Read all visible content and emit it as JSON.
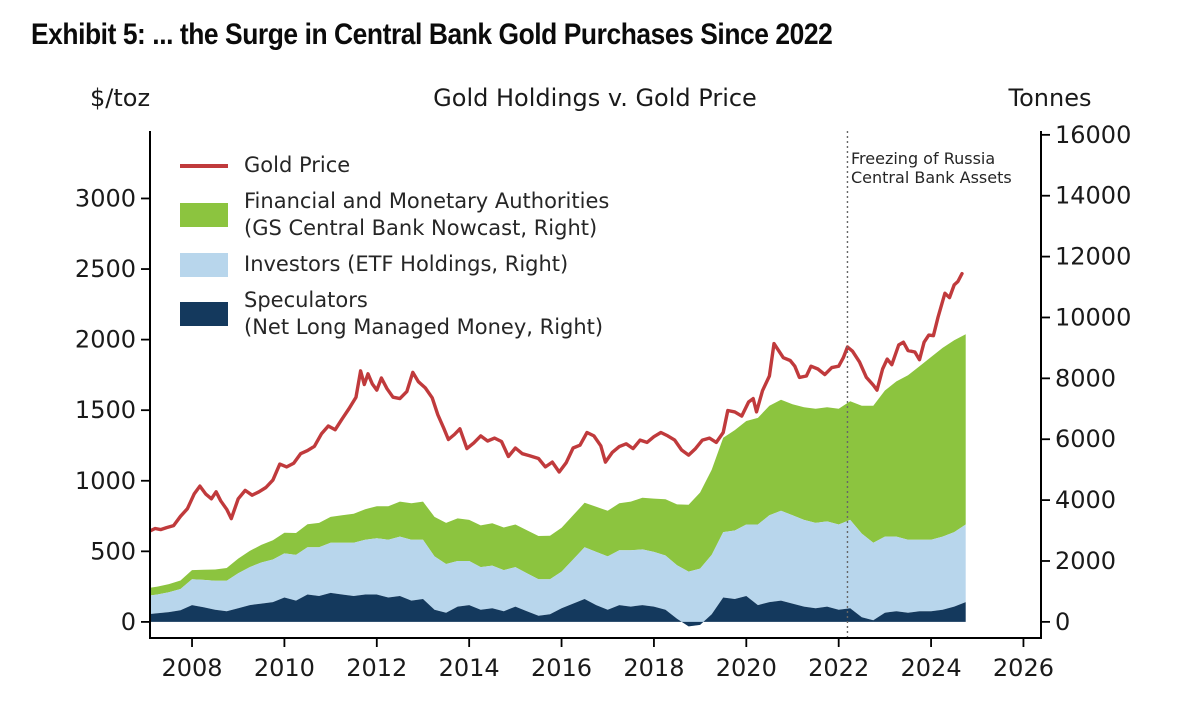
{
  "header": {
    "title": "Exhibit 5: ... the Surge in Central Bank Gold Purchases Since 2022"
  },
  "chart": {
    "title": "Gold Holdings v. Gold Price",
    "left_axis_title": "$/toz",
    "right_axis_title": "Tonnes",
    "annotation": "Freezing of Russia\nCentral Bank Assets",
    "legend": [
      {
        "type": "line",
        "color": "#c03a3c",
        "label": "Gold Price"
      },
      {
        "type": "patch",
        "color": "#8cc43f",
        "label": "Financial and Monetary Authorities\n(GS Central Bank Nowcast, Right)"
      },
      {
        "type": "patch",
        "color": "#b8d6ec",
        "label": "Investors (ETF Holdings, Right)"
      },
      {
        "type": "patch",
        "color": "#14395d",
        "label": "Speculators\n(Net Long Managed Money, Right)"
      }
    ]
  },
  "chart_data": {
    "type": "combo",
    "subtypes": [
      "line",
      "stacked_area"
    ],
    "title": "Gold Holdings v. Gold Price",
    "x_axis": {
      "ticks": [
        2008,
        2010,
        2012,
        2014,
        2016,
        2018,
        2020,
        2022,
        2024,
        2026
      ],
      "range": [
        2007.09,
        2026.38
      ],
      "grid": false
    },
    "left_y_axis": {
      "label": "$/toz",
      "ticks": [
        0,
        500,
        1000,
        1500,
        2000,
        2500,
        3000
      ],
      "range": [
        -114,
        3478
      ]
    },
    "right_y_axis": {
      "label": "Tonnes",
      "ticks": [
        0,
        2000,
        4000,
        6000,
        8000,
        10000,
        12000,
        14000,
        16000
      ],
      "range": [
        -530,
        16126
      ]
    },
    "event_line": {
      "x": 2022.19,
      "label": "Freezing of Russia Central Bank Assets",
      "style": "dashed"
    },
    "legend_position": "upper-left-inside",
    "gold_price": {
      "name": "Gold Price",
      "axis": "left",
      "unit": "$/toz",
      "color": "#c03a3c",
      "points": [
        [
          2007.09,
          645
        ],
        [
          2007.2,
          662
        ],
        [
          2007.32,
          654
        ],
        [
          2007.45,
          668
        ],
        [
          2007.6,
          682
        ],
        [
          2007.75,
          748
        ],
        [
          2007.9,
          802
        ],
        [
          2008.05,
          908
        ],
        [
          2008.17,
          962
        ],
        [
          2008.3,
          905
        ],
        [
          2008.42,
          872
        ],
        [
          2008.52,
          922
        ],
        [
          2008.62,
          858
        ],
        [
          2008.75,
          798
        ],
        [
          2008.85,
          732
        ],
        [
          2009.0,
          872
        ],
        [
          2009.15,
          932
        ],
        [
          2009.3,
          898
        ],
        [
          2009.45,
          922
        ],
        [
          2009.6,
          952
        ],
        [
          2009.75,
          1005
        ],
        [
          2009.9,
          1118
        ],
        [
          2010.05,
          1098
        ],
        [
          2010.2,
          1124
        ],
        [
          2010.35,
          1192
        ],
        [
          2010.5,
          1214
        ],
        [
          2010.65,
          1244
        ],
        [
          2010.8,
          1332
        ],
        [
          2010.95,
          1388
        ],
        [
          2011.1,
          1362
        ],
        [
          2011.25,
          1438
        ],
        [
          2011.4,
          1512
        ],
        [
          2011.55,
          1592
        ],
        [
          2011.65,
          1778
        ],
        [
          2011.73,
          1682
        ],
        [
          2011.81,
          1758
        ],
        [
          2011.9,
          1688
        ],
        [
          2012.0,
          1642
        ],
        [
          2012.1,
          1728
        ],
        [
          2012.22,
          1652
        ],
        [
          2012.35,
          1592
        ],
        [
          2012.5,
          1582
        ],
        [
          2012.65,
          1632
        ],
        [
          2012.78,
          1768
        ],
        [
          2012.9,
          1702
        ],
        [
          2013.05,
          1658
        ],
        [
          2013.2,
          1588
        ],
        [
          2013.32,
          1468
        ],
        [
          2013.45,
          1372
        ],
        [
          2013.55,
          1292
        ],
        [
          2013.68,
          1328
        ],
        [
          2013.8,
          1368
        ],
        [
          2013.95,
          1228
        ],
        [
          2014.1,
          1268
        ],
        [
          2014.25,
          1318
        ],
        [
          2014.4,
          1282
        ],
        [
          2014.55,
          1302
        ],
        [
          2014.7,
          1278
        ],
        [
          2014.85,
          1172
        ],
        [
          2015.0,
          1232
        ],
        [
          2015.15,
          1192
        ],
        [
          2015.3,
          1178
        ],
        [
          2015.5,
          1158
        ],
        [
          2015.65,
          1098
        ],
        [
          2015.8,
          1132
        ],
        [
          2015.95,
          1062
        ],
        [
          2016.1,
          1128
        ],
        [
          2016.25,
          1232
        ],
        [
          2016.4,
          1252
        ],
        [
          2016.55,
          1342
        ],
        [
          2016.7,
          1318
        ],
        [
          2016.85,
          1248
        ],
        [
          2016.95,
          1132
        ],
        [
          2017.1,
          1202
        ],
        [
          2017.25,
          1242
        ],
        [
          2017.4,
          1262
        ],
        [
          2017.55,
          1228
        ],
        [
          2017.7,
          1288
        ],
        [
          2017.85,
          1272
        ],
        [
          2018.0,
          1312
        ],
        [
          2018.15,
          1342
        ],
        [
          2018.3,
          1318
        ],
        [
          2018.45,
          1288
        ],
        [
          2018.6,
          1218
        ],
        [
          2018.75,
          1182
        ],
        [
          2018.9,
          1228
        ],
        [
          2019.05,
          1288
        ],
        [
          2019.2,
          1302
        ],
        [
          2019.35,
          1272
        ],
        [
          2019.5,
          1342
        ],
        [
          2019.6,
          1498
        ],
        [
          2019.75,
          1488
        ],
        [
          2019.9,
          1458
        ],
        [
          2020.05,
          1558
        ],
        [
          2020.15,
          1582
        ],
        [
          2020.22,
          1488
        ],
        [
          2020.35,
          1638
        ],
        [
          2020.5,
          1742
        ],
        [
          2020.6,
          1972
        ],
        [
          2020.7,
          1922
        ],
        [
          2020.8,
          1872
        ],
        [
          2020.95,
          1852
        ],
        [
          2021.05,
          1812
        ],
        [
          2021.15,
          1732
        ],
        [
          2021.3,
          1742
        ],
        [
          2021.4,
          1812
        ],
        [
          2021.55,
          1792
        ],
        [
          2021.7,
          1752
        ],
        [
          2021.85,
          1802
        ],
        [
          2022.0,
          1812
        ],
        [
          2022.1,
          1872
        ],
        [
          2022.19,
          1948
        ],
        [
          2022.3,
          1918
        ],
        [
          2022.45,
          1842
        ],
        [
          2022.6,
          1732
        ],
        [
          2022.75,
          1678
        ],
        [
          2022.83,
          1642
        ],
        [
          2022.95,
          1792
        ],
        [
          2023.05,
          1862
        ],
        [
          2023.15,
          1822
        ],
        [
          2023.3,
          1962
        ],
        [
          2023.4,
          1982
        ],
        [
          2023.5,
          1922
        ],
        [
          2023.65,
          1912
        ],
        [
          2023.75,
          1858
        ],
        [
          2023.85,
          1982
        ],
        [
          2023.95,
          2032
        ],
        [
          2024.05,
          2028
        ],
        [
          2024.15,
          2158
        ],
        [
          2024.3,
          2328
        ],
        [
          2024.4,
          2298
        ],
        [
          2024.5,
          2388
        ],
        [
          2024.58,
          2412
        ],
        [
          2024.67,
          2468
        ]
      ]
    },
    "holdings_stack": {
      "axis": "right",
      "unit": "tonnes",
      "x_start": 2007.0,
      "x_step": 0.25,
      "series": [
        {
          "name": "Speculators (Net Long Managed Money)",
          "color": "#14395d",
          "values": [
            250,
            280,
            320,
            380,
            550,
            480,
            400,
            350,
            450,
            550,
            600,
            650,
            800,
            700,
            900,
            850,
            950,
            900,
            850,
            900,
            900,
            800,
            850,
            700,
            750,
            400,
            300,
            500,
            550,
            400,
            450,
            350,
            500,
            350,
            200,
            250,
            450,
            600,
            750,
            550,
            400,
            550,
            500,
            550,
            500,
            400,
            100,
            -150,
            -100,
            250,
            800,
            750,
            850,
            550,
            650,
            700,
            600,
            500,
            450,
            500,
            400,
            450,
            150,
            50,
            300,
            350,
            300,
            350,
            350,
            400,
            500,
            650
          ]
        },
        {
          "name": "Investors (ETF Holdings)",
          "color": "#b8d6ec",
          "values": [
            600,
            620,
            650,
            700,
            850,
            900,
            950,
            1000,
            1150,
            1250,
            1350,
            1400,
            1450,
            1500,
            1550,
            1600,
            1650,
            1700,
            1750,
            1800,
            1850,
            1900,
            1950,
            2000,
            1950,
            1750,
            1600,
            1500,
            1450,
            1400,
            1400,
            1350,
            1300,
            1250,
            1200,
            1150,
            1200,
            1450,
            1700,
            1750,
            1750,
            1800,
            1850,
            1830,
            1800,
            1780,
            1760,
            1800,
            1850,
            1950,
            2150,
            2250,
            2350,
            2650,
            2850,
            2950,
            2900,
            2850,
            2800,
            2800,
            2800,
            2900,
            2750,
            2550,
            2500,
            2450,
            2400,
            2350,
            2350,
            2400,
            2450,
            2550
          ]
        },
        {
          "name": "Financial and Monetary Authorities (GS Central Bank Nowcast)",
          "color": "#8cc43f",
          "values": [
            250,
            260,
            270,
            280,
            300,
            330,
            370,
            420,
            480,
            530,
            580,
            630,
            680,
            720,
            760,
            800,
            850,
            900,
            950,
            1000,
            1050,
            1100,
            1150,
            1200,
            1250,
            1300,
            1350,
            1400,
            1350,
            1370,
            1390,
            1400,
            1400,
            1410,
            1420,
            1430,
            1440,
            1450,
            1460,
            1480,
            1500,
            1550,
            1600,
            1700,
            1750,
            1850,
            2000,
            2200,
            2500,
            2800,
            3100,
            3300,
            3400,
            3500,
            3600,
            3650,
            3650,
            3700,
            3750,
            3750,
            3800,
            3900,
            4200,
            4500,
            4800,
            5100,
            5400,
            5700,
            6000,
            6200,
            6300,
            6250
          ]
        }
      ]
    }
  }
}
